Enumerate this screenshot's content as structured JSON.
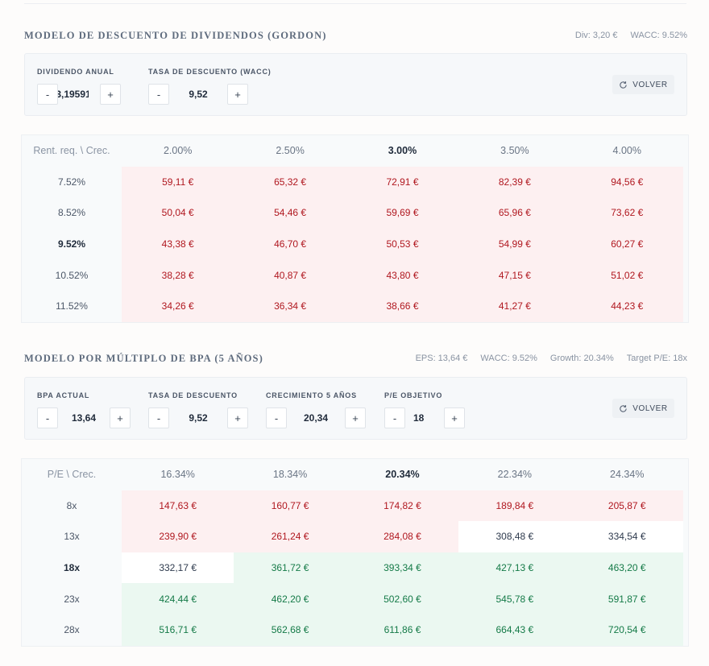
{
  "gordon": {
    "title": "MODELO DE DESCUENTO DE DIVIDENDOS (GORDON)",
    "meta": [
      "Div: 3,20 €",
      "WACC: 9.52%"
    ],
    "fields": [
      {
        "label": "DIVIDENDO ANUAL",
        "value": "3,19591"
      },
      {
        "label": "TASA DE DESCUENTO (WACC)",
        "value": "9,52"
      }
    ],
    "minus": "-",
    "plus": "+",
    "reset_label": "VOLVER",
    "corner": "Rent. req. \\ Crec.",
    "columns": [
      "2.00%",
      "2.50%",
      "3.00%",
      "3.50%",
      "4.00%"
    ],
    "rows": [
      {
        "label": "7.52%",
        "values": [
          "59,11 €",
          "65,32 €",
          "72,91 €",
          "82,39 €",
          "94,56 €"
        ],
        "tones": [
          "neg",
          "neg",
          "neg",
          "neg",
          "neg"
        ]
      },
      {
        "label": "8.52%",
        "values": [
          "50,04 €",
          "54,46 €",
          "59,69 €",
          "65,96 €",
          "73,62 €"
        ],
        "tones": [
          "neg",
          "neg",
          "neg",
          "neg",
          "neg"
        ]
      },
      {
        "label": "9.52%",
        "values": [
          "43,38 €",
          "46,70 €",
          "50,53 €",
          "54,99 €",
          "60,27 €"
        ],
        "tones": [
          "neg",
          "neg",
          "neg",
          "neg",
          "neg"
        ]
      },
      {
        "label": "10.52%",
        "values": [
          "38,28 €",
          "40,87 €",
          "43,80 €",
          "47,15 €",
          "51,02 €"
        ],
        "tones": [
          "neg",
          "neg",
          "neg",
          "neg",
          "neg"
        ]
      },
      {
        "label": "11.52%",
        "values": [
          "34,26 €",
          "36,34 €",
          "38,66 €",
          "41,27 €",
          "44,23 €"
        ],
        "tones": [
          "neg",
          "neg",
          "neg",
          "neg",
          "neg"
        ]
      }
    ]
  },
  "eps": {
    "title": "MODELO POR MÚLTIPLO DE BPA (5 AÑOS)",
    "meta": [
      "EPS: 13,64 €",
      "WACC: 9.52%",
      "Growth: 20.34%",
      "Target P/E: 18x"
    ],
    "fields": [
      {
        "label": "BPA ACTUAL",
        "value": "13,64"
      },
      {
        "label": "TASA DE DESCUENTO",
        "value": "9,52"
      },
      {
        "label": "CRECIMIENTO 5 AÑOS",
        "value": "20,34"
      },
      {
        "label": "P/E OBJETIVO",
        "value": "18"
      }
    ],
    "minus": "-",
    "plus": "+",
    "reset_label": "VOLVER",
    "corner": "P/E \\ Crec.",
    "columns": [
      "16.34%",
      "18.34%",
      "20.34%",
      "22.34%",
      "24.34%"
    ],
    "rows": [
      {
        "label": "8x",
        "values": [
          "147,63 €",
          "160,77 €",
          "174,82 €",
          "189,84 €",
          "205,87 €"
        ],
        "tones": [
          "neg",
          "neg",
          "neg",
          "neg",
          "neg"
        ]
      },
      {
        "label": "13x",
        "values": [
          "239,90 €",
          "261,24 €",
          "284,08 €",
          "308,48 €",
          "334,54 €"
        ],
        "tones": [
          "neg",
          "neg",
          "neg",
          "neutral",
          "neutral"
        ]
      },
      {
        "label": "18x",
        "values": [
          "332,17 €",
          "361,72 €",
          "393,34 €",
          "427,13 €",
          "463,20 €"
        ],
        "tones": [
          "neutral",
          "pos",
          "pos",
          "pos",
          "pos"
        ]
      },
      {
        "label": "23x",
        "values": [
          "424,44 €",
          "462,20 €",
          "502,60 €",
          "545,78 €",
          "591,87 €"
        ],
        "tones": [
          "pos",
          "pos",
          "pos",
          "pos",
          "pos"
        ]
      },
      {
        "label": "28x",
        "values": [
          "516,71 €",
          "562,68 €",
          "611,86 €",
          "664,43 €",
          "720,54 €"
        ],
        "tones": [
          "pos",
          "pos",
          "pos",
          "pos",
          "pos"
        ]
      }
    ]
  },
  "colors": {
    "negative": "#b0171f",
    "positive": "#147a47",
    "neutral": "#2f3b4e"
  }
}
